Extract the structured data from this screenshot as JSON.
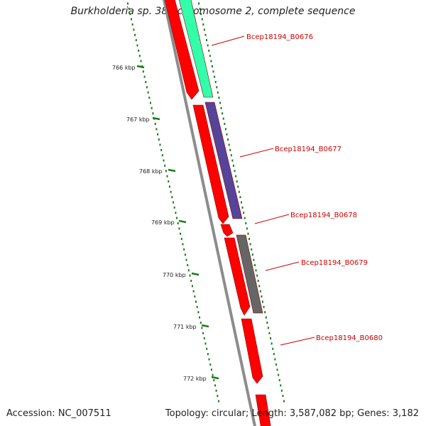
{
  "title": "Burkholderia sp. 383 chromosome 2, complete sequence",
  "accession_text": "Accession: NC_007511",
  "summary_text": "Topology: circular; Length: 3,587,082 bp; Genes: 3,182",
  "colors": {
    "backbone": "#8c8c8c",
    "tick": "#1a7a1a",
    "cds": "#ff0000",
    "label": "#cc0000",
    "gene_B0676": "#33ffaa",
    "gene_B0677": "#554499",
    "gene_B0679": "#666666",
    "gene_B0680": "#ff0000"
  },
  "scale": {
    "unit": "kbp",
    "labels": [
      "766 kbp",
      "767 kbp",
      "768 kbp",
      "769 kbp",
      "770 kbp",
      "771 kbp",
      "772 kbp"
    ]
  },
  "genes": [
    {
      "label": "Bcep18194_B0676",
      "feature_color": "gene_B0676"
    },
    {
      "label": "Bcep18194_B0677",
      "feature_color": "gene_B0677"
    },
    {
      "label": "Bcep18194_B0678",
      "feature_color": "none"
    },
    {
      "label": "Bcep18194_B0679",
      "feature_color": "gene_B0679"
    },
    {
      "label": "Bcep18194_B0680",
      "feature_color": "gene_B0680"
    }
  ]
}
